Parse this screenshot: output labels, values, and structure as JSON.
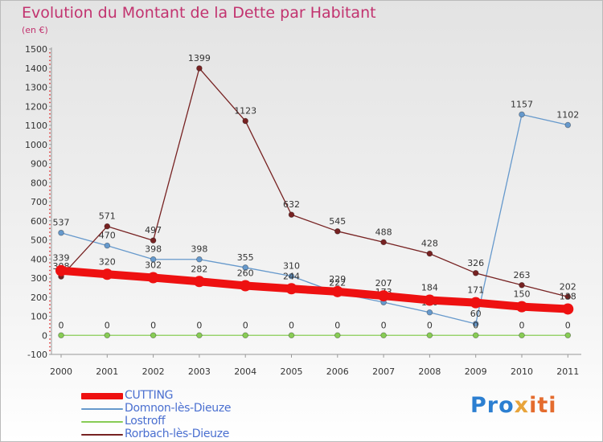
{
  "title": "Evolution du Montant de la Dette par Habitant",
  "subtitle": "(en €)",
  "logo": [
    "Pro",
    "x",
    "iti"
  ],
  "chart_data": {
    "type": "line",
    "title": "Evolution du Montant de la Dette par Habitant",
    "ylabel": "(en €)",
    "xlabel": "",
    "x": [
      "2000",
      "2001",
      "2002",
      "2003",
      "2004",
      "2005",
      "2006",
      "2007",
      "2008",
      "2009",
      "2010",
      "2011"
    ],
    "ylim": [
      -100,
      1500
    ],
    "yticks": [
      -100,
      0,
      100,
      200,
      300,
      400,
      500,
      600,
      700,
      800,
      900,
      1000,
      1100,
      1200,
      1300,
      1400,
      1500
    ],
    "grid": false,
    "legend_position": "bottom-left",
    "series": [
      {
        "name": "CUTTING",
        "color": "#ee1111",
        "values": [
          339,
          320,
          302,
          282,
          260,
          244,
          229,
          207,
          184,
          171,
          150,
          138
        ],
        "labels": [
          "339",
          "320",
          "302",
          "282",
          "260",
          "244",
          "229",
          "207",
          "184",
          "171",
          "150",
          "138"
        ]
      },
      {
        "name": "Domnon-lès-Dieuze",
        "color": "#6699cc",
        "values": [
          537,
          470,
          398,
          398,
          355,
          310,
          222,
          173,
          120,
          60,
          1157,
          1102
        ],
        "labels": [
          "537",
          "470",
          "398",
          "398",
          "355",
          "310",
          "222",
          "173",
          "120",
          "60",
          "1157",
          "1102"
        ]
      },
      {
        "name": "Lostroff",
        "color": "#88cc55",
        "values": [
          0,
          0,
          0,
          0,
          0,
          0,
          0,
          0,
          0,
          0,
          0,
          0
        ],
        "labels": [
          "0",
          "0",
          "0",
          "0",
          "0",
          "0",
          "0",
          "0",
          "0",
          "0",
          "0",
          "0"
        ]
      },
      {
        "name": "Rorbach-lès-Dieuze",
        "color": "#772222",
        "values": [
          308,
          571,
          497,
          1399,
          1123,
          632,
          545,
          488,
          428,
          326,
          263,
          202
        ],
        "labels": [
          "308",
          "571",
          "497",
          "1399",
          "1123",
          "632",
          "545",
          "488",
          "428",
          "326",
          "263",
          "202"
        ]
      }
    ]
  }
}
